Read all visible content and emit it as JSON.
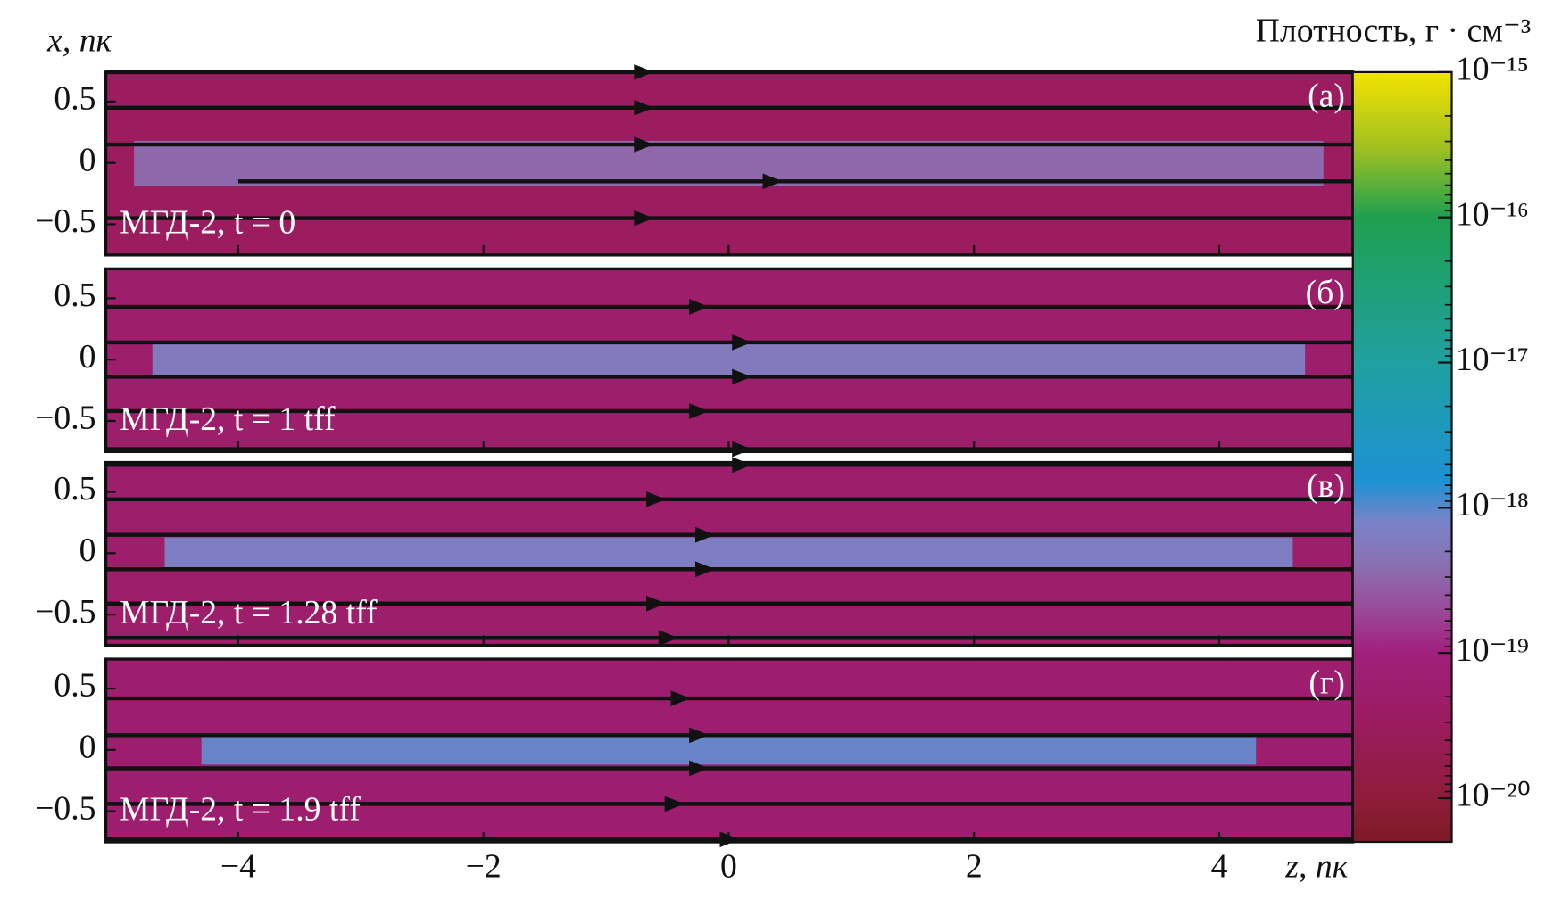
{
  "chart_data": {
    "type": "field-map",
    "xlabel": "z, пк",
    "ylabel": "x, пк",
    "colorbar_label": "Плотность, г · см⁻³",
    "xlim": [
      -5.08,
      5.09
    ],
    "xticks": [
      {
        "value": -4,
        "label": "−4"
      },
      {
        "value": -2,
        "label": "−2"
      },
      0,
      2,
      4
    ],
    "ylim": [
      -0.75,
      0.74
    ],
    "yticks": [
      {
        "value": -0.5,
        "label": "−0.5"
      },
      0,
      0.5
    ],
    "clim": [
      5e-21,
      1e-15
    ],
    "log_color": true,
    "cticks": [
      {
        "value": 1e-15,
        "label": "10⁻¹⁵"
      },
      {
        "value": 1e-16,
        "label": "10⁻¹⁶"
      },
      {
        "value": 1e-17,
        "label": "10⁻¹⁷"
      },
      {
        "value": 1e-18,
        "label": "10⁻¹⁸"
      },
      {
        "value": 1e-19,
        "label": "10⁻¹⁹"
      },
      {
        "value": 1e-20,
        "label": "10⁻²⁰"
      }
    ],
    "colormap": [
      {
        "value": 5e-21,
        "color": "#7e1a28"
      },
      {
        "value": 1e-20,
        "color": "#8e1c3a"
      },
      {
        "value": 3e-20,
        "color": "#9a1c5c"
      },
      {
        "value": 1e-19,
        "color": "#a0207c"
      },
      {
        "value": 2e-19,
        "color": "#9a4a9a"
      },
      {
        "value": 4e-19,
        "color": "#8a70b0"
      },
      {
        "value": 8e-19,
        "color": "#7a82c8"
      },
      {
        "value": 1.5e-18,
        "color": "#1e92d4"
      },
      {
        "value": 1e-17,
        "color": "#20a0a0"
      },
      {
        "value": 1e-16,
        "color": "#1ea050"
      },
      {
        "value": 3e-16,
        "color": "#a0c020"
      },
      {
        "value": 1e-15,
        "color": "#f4e400"
      }
    ],
    "line_color": "#111111",
    "panels": [
      {
        "label": "(а)",
        "annotation": "МГД-2, t = 0",
        "background_density": 3.5e-20,
        "filament_density": 3.5e-19,
        "filament_z": [
          -4.85,
          4.85
        ],
        "filament_x": [
          -0.19,
          0.18
        ],
        "field_lines": [
          {
            "x": 0.74,
            "arrow_z": -0.7
          },
          {
            "x": 0.45,
            "arrow_z": -0.7
          },
          {
            "x": 0.15,
            "arrow_z": -0.7
          },
          {
            "x": -0.15,
            "arrow_z": 0.35,
            "z_start": -4.0
          },
          {
            "x": -0.45,
            "arrow_z": -0.7
          }
        ]
      },
      {
        "label": "(б)",
        "annotation": "МГД-2, t = 1 tff",
        "background_density": 5e-20,
        "filament_density": 6e-19,
        "filament_z": [
          -4.7,
          4.7
        ],
        "filament_x": [
          -0.14,
          0.14
        ],
        "field_lines": [
          {
            "x": 0.43,
            "arrow_z": -0.25
          },
          {
            "x": 0.14,
            "arrow_z": 0.1
          },
          {
            "x": -0.14,
            "arrow_z": 0.1
          },
          {
            "x": -0.42,
            "arrow_z": -0.25
          },
          {
            "x": -0.73,
            "arrow_z": 0.1
          }
        ]
      },
      {
        "label": "(в)",
        "annotation": "МГД-2, t = 1.28 tff",
        "background_density": 5e-20,
        "filament_density": 6.5e-19,
        "filament_z": [
          -4.6,
          4.6
        ],
        "filament_x": [
          -0.13,
          0.13
        ],
        "field_lines": [
          {
            "x": 0.72,
            "arrow_z": 0.1
          },
          {
            "x": 0.44,
            "arrow_z": -0.6
          },
          {
            "x": 0.15,
            "arrow_z": -0.2
          },
          {
            "x": -0.13,
            "arrow_z": -0.2
          },
          {
            "x": -0.41,
            "arrow_z": -0.6
          },
          {
            "x": -0.69,
            "arrow_z": -0.5
          }
        ]
      },
      {
        "label": "(г)",
        "annotation": "МГД-2, t = 1.9 tff",
        "background_density": 6e-20,
        "filament_density": 9e-19,
        "filament_z": [
          -4.3,
          4.3
        ],
        "filament_x": [
          -0.12,
          0.12
        ],
        "field_lines": [
          {
            "x": 0.42,
            "arrow_z": -0.4
          },
          {
            "x": 0.12,
            "arrow_z": -0.25
          },
          {
            "x": -0.15,
            "arrow_z": -0.25
          },
          {
            "x": -0.44,
            "arrow_z": -0.45
          },
          {
            "x": -0.73,
            "arrow_z": 0.0
          }
        ]
      }
    ]
  }
}
